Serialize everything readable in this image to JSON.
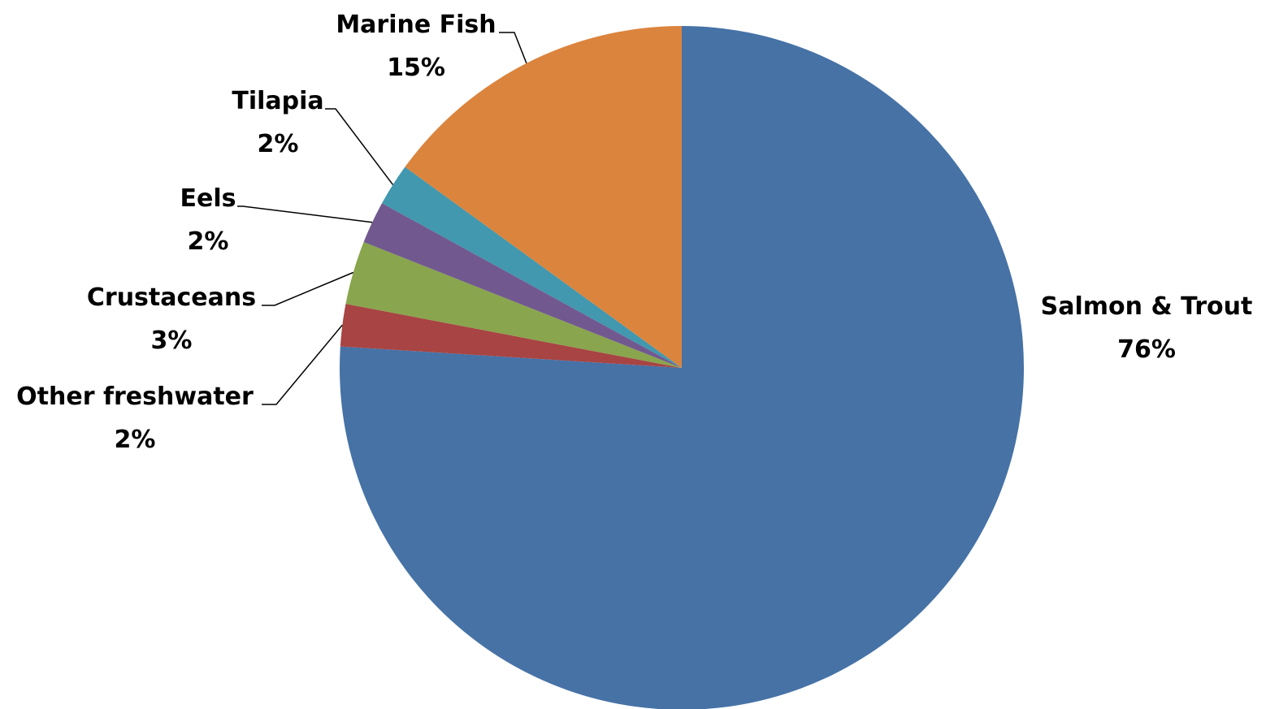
{
  "chart_data": {
    "type": "pie",
    "title": "",
    "start_angle_deg": 0,
    "direction": "clockwise",
    "slices": [
      {
        "name": "Salmon & Trout",
        "value": 76,
        "label": "76%",
        "color": "#4672A6"
      },
      {
        "name": "Other freshwater",
        "value": 2,
        "label": "2%",
        "color": "#A84443"
      },
      {
        "name": "Crustaceans",
        "value": 3,
        "label": "3%",
        "color": "#89A54E"
      },
      {
        "name": "Eels",
        "value": 2,
        "label": "2%",
        "color": "#71598F"
      },
      {
        "name": "Tilapia",
        "value": 2,
        "label": "2%",
        "color": "#4198AF"
      },
      {
        "name": "Marine Fish",
        "value": 15,
        "label": "15%",
        "color": "#DB843D"
      }
    ]
  }
}
